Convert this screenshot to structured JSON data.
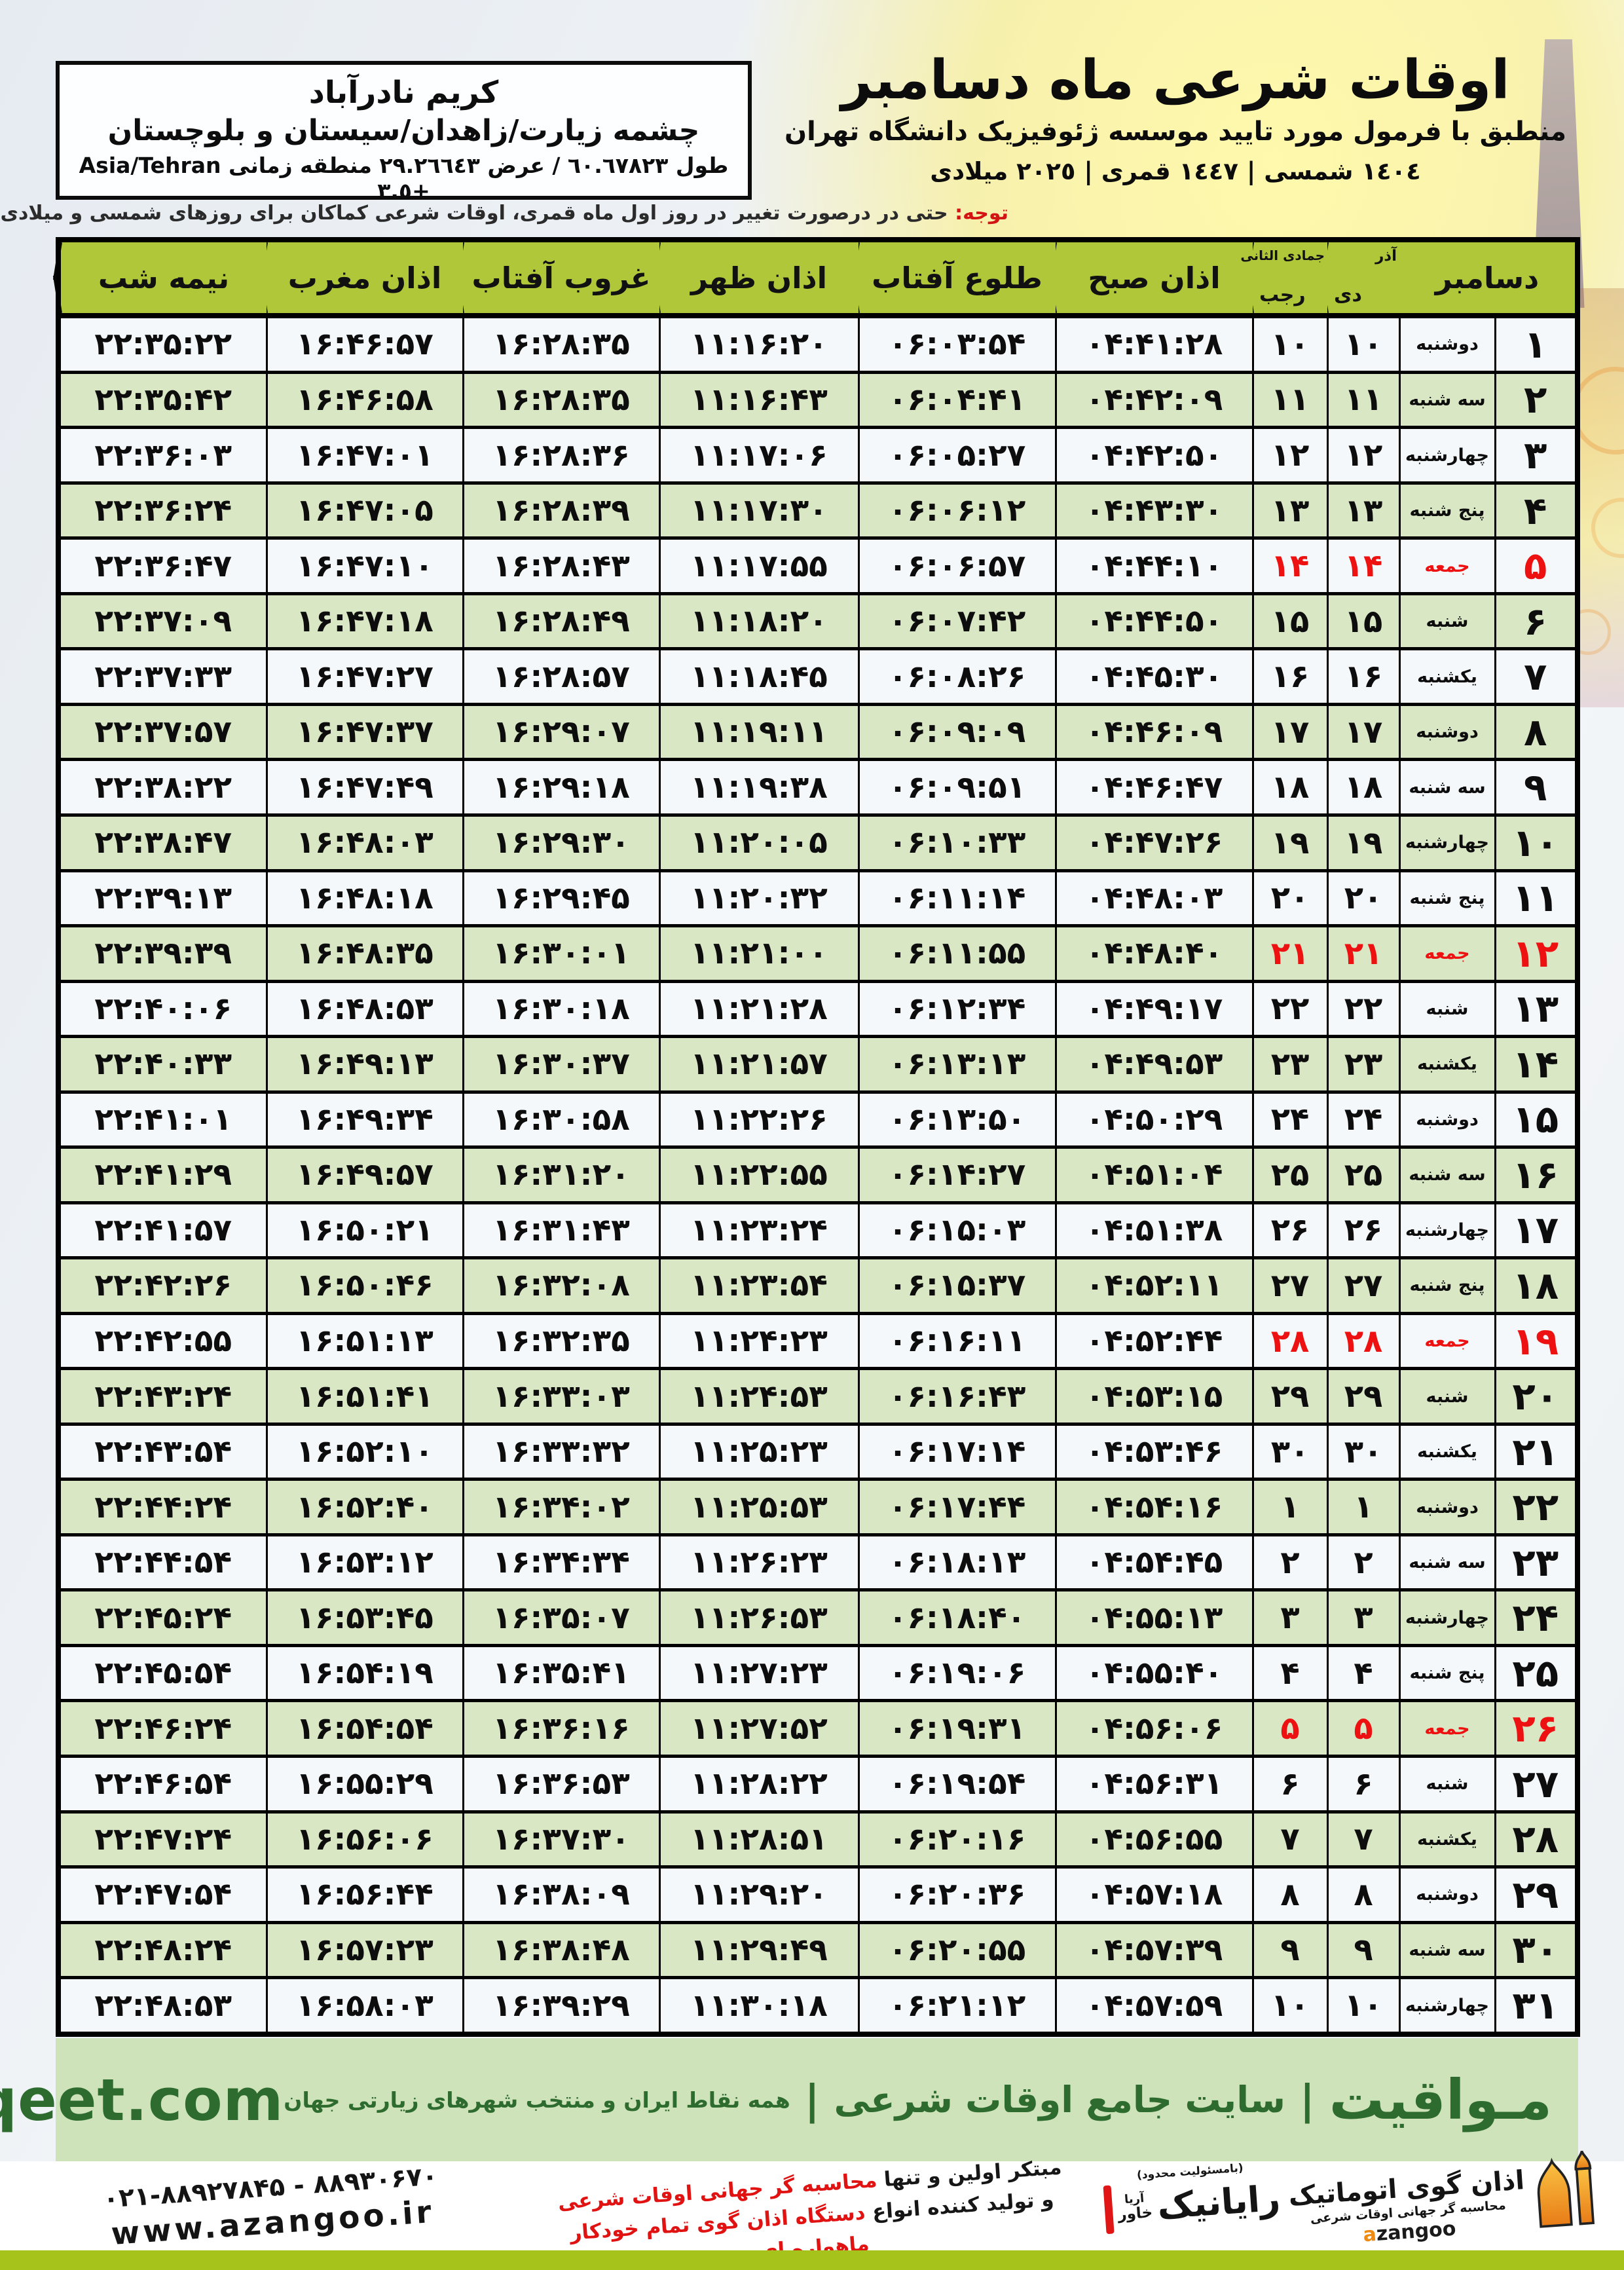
{
  "location_box": {
    "title": "کریم نادرآباد",
    "region": "چشمه زیارت/زاهدان/سیستان و بلوچستان",
    "coords": "طول ٦٠.٦٧٨٢٣ / عرض ٢٩.٢٦٦٤٣ منطقه زمانی Asia/Tehran +٣.٥"
  },
  "header": {
    "title": "اوقات شرعی ماه دسامبر",
    "subtitle": "منطبق با فرمول مورد تایید موسسه ژئوفیزیک دانشگاه تهران",
    "years": "١٤٠٤ شمسی | ١٤٤٧ قمری | ٢٠٢٥ میلادی"
  },
  "note": {
    "label": "توجه:",
    "text": " حتی در درصورت تغییر در روز اول ماه قمری، اوقات شرعی کماکان برای روزهای شمسی و میلادی معتبر است."
  },
  "table": {
    "columns": {
      "december": "دسامبر",
      "persian_month_top": "آذر",
      "persian_month_bottom": "دی",
      "islamic_month_top": "جمادی الثانی",
      "islamic_month_bottom": "رجب",
      "fajr": "اذان صبح",
      "sunrise": "طلوع آفتاب",
      "dhuhr": "اذان ظهر",
      "sunset": "غروب آفتاب",
      "maghrib": "اذان مغرب",
      "midnight": "نیمه شب"
    },
    "rows": [
      {
        "day": "۱",
        "weekday": "دوشنبه",
        "persian_day": "۱۰",
        "islamic_day": "۱۰",
        "fajr": "۰۴:۴۱:۲۸",
        "sunrise": "۰۶:۰۳:۵۴",
        "dhuhr": "۱۱:۱۶:۲۰",
        "sunset": "۱۶:۲۸:۳۵",
        "maghrib": "۱۶:۴۶:۵۷",
        "midnight": "۲۲:۳۵:۲۲",
        "friday": false
      },
      {
        "day": "۲",
        "weekday": "سه شنبه",
        "persian_day": "۱۱",
        "islamic_day": "۱۱",
        "fajr": "۰۴:۴۲:۰۹",
        "sunrise": "۰۶:۰۴:۴۱",
        "dhuhr": "۱۱:۱۶:۴۳",
        "sunset": "۱۶:۲۸:۳۵",
        "maghrib": "۱۶:۴۶:۵۸",
        "midnight": "۲۲:۳۵:۴۲",
        "friday": false
      },
      {
        "day": "۳",
        "weekday": "چهارشنبه",
        "persian_day": "۱۲",
        "islamic_day": "۱۲",
        "fajr": "۰۴:۴۲:۵۰",
        "sunrise": "۰۶:۰۵:۲۷",
        "dhuhr": "۱۱:۱۷:۰۶",
        "sunset": "۱۶:۲۸:۳۶",
        "maghrib": "۱۶:۴۷:۰۱",
        "midnight": "۲۲:۳۶:۰۳",
        "friday": false
      },
      {
        "day": "۴",
        "weekday": "پنج شنبه",
        "persian_day": "۱۳",
        "islamic_day": "۱۳",
        "fajr": "۰۴:۴۳:۳۰",
        "sunrise": "۰۶:۰۶:۱۲",
        "dhuhr": "۱۱:۱۷:۳۰",
        "sunset": "۱۶:۲۸:۳۹",
        "maghrib": "۱۶:۴۷:۰۵",
        "midnight": "۲۲:۳۶:۲۴",
        "friday": false
      },
      {
        "day": "۵",
        "weekday": "جمعه",
        "persian_day": "۱۴",
        "islamic_day": "۱۴",
        "fajr": "۰۴:۴۴:۱۰",
        "sunrise": "۰۶:۰۶:۵۷",
        "dhuhr": "۱۱:۱۷:۵۵",
        "sunset": "۱۶:۲۸:۴۳",
        "maghrib": "۱۶:۴۷:۱۰",
        "midnight": "۲۲:۳۶:۴۷",
        "friday": true
      },
      {
        "day": "۶",
        "weekday": "شنبه",
        "persian_day": "۱۵",
        "islamic_day": "۱۵",
        "fajr": "۰۴:۴۴:۵۰",
        "sunrise": "۰۶:۰۷:۴۲",
        "dhuhr": "۱۱:۱۸:۲۰",
        "sunset": "۱۶:۲۸:۴۹",
        "maghrib": "۱۶:۴۷:۱۸",
        "midnight": "۲۲:۳۷:۰۹",
        "friday": false
      },
      {
        "day": "۷",
        "weekday": "یکشنبه",
        "persian_day": "۱۶",
        "islamic_day": "۱۶",
        "fajr": "۰۴:۴۵:۳۰",
        "sunrise": "۰۶:۰۸:۲۶",
        "dhuhr": "۱۱:۱۸:۴۵",
        "sunset": "۱۶:۲۸:۵۷",
        "maghrib": "۱۶:۴۷:۲۷",
        "midnight": "۲۲:۳۷:۳۳",
        "friday": false
      },
      {
        "day": "۸",
        "weekday": "دوشنبه",
        "persian_day": "۱۷",
        "islamic_day": "۱۷",
        "fajr": "۰۴:۴۶:۰۹",
        "sunrise": "۰۶:۰۹:۰۹",
        "dhuhr": "۱۱:۱۹:۱۱",
        "sunset": "۱۶:۲۹:۰۷",
        "maghrib": "۱۶:۴۷:۳۷",
        "midnight": "۲۲:۳۷:۵۷",
        "friday": false
      },
      {
        "day": "۹",
        "weekday": "سه شنبه",
        "persian_day": "۱۸",
        "islamic_day": "۱۸",
        "fajr": "۰۴:۴۶:۴۷",
        "sunrise": "۰۶:۰۹:۵۱",
        "dhuhr": "۱۱:۱۹:۳۸",
        "sunset": "۱۶:۲۹:۱۸",
        "maghrib": "۱۶:۴۷:۴۹",
        "midnight": "۲۲:۳۸:۲۲",
        "friday": false
      },
      {
        "day": "۱۰",
        "weekday": "چهارشنبه",
        "persian_day": "۱۹",
        "islamic_day": "۱۹",
        "fajr": "۰۴:۴۷:۲۶",
        "sunrise": "۰۶:۱۰:۳۳",
        "dhuhr": "۱۱:۲۰:۰۵",
        "sunset": "۱۶:۲۹:۳۰",
        "maghrib": "۱۶:۴۸:۰۳",
        "midnight": "۲۲:۳۸:۴۷",
        "friday": false
      },
      {
        "day": "۱۱",
        "weekday": "پنج شنبه",
        "persian_day": "۲۰",
        "islamic_day": "۲۰",
        "fajr": "۰۴:۴۸:۰۳",
        "sunrise": "۰۶:۱۱:۱۴",
        "dhuhr": "۱۱:۲۰:۳۲",
        "sunset": "۱۶:۲۹:۴۵",
        "maghrib": "۱۶:۴۸:۱۸",
        "midnight": "۲۲:۳۹:۱۳",
        "friday": false
      },
      {
        "day": "۱۲",
        "weekday": "جمعه",
        "persian_day": "۲۱",
        "islamic_day": "۲۱",
        "fajr": "۰۴:۴۸:۴۰",
        "sunrise": "۰۶:۱۱:۵۵",
        "dhuhr": "۱۱:۲۱:۰۰",
        "sunset": "۱۶:۳۰:۰۱",
        "maghrib": "۱۶:۴۸:۳۵",
        "midnight": "۲۲:۳۹:۳۹",
        "friday": true
      },
      {
        "day": "۱۳",
        "weekday": "شنبه",
        "persian_day": "۲۲",
        "islamic_day": "۲۲",
        "fajr": "۰۴:۴۹:۱۷",
        "sunrise": "۰۶:۱۲:۳۴",
        "dhuhr": "۱۱:۲۱:۲۸",
        "sunset": "۱۶:۳۰:۱۸",
        "maghrib": "۱۶:۴۸:۵۳",
        "midnight": "۲۲:۴۰:۰۶",
        "friday": false
      },
      {
        "day": "۱۴",
        "weekday": "یکشنبه",
        "persian_day": "۲۳",
        "islamic_day": "۲۳",
        "fajr": "۰۴:۴۹:۵۳",
        "sunrise": "۰۶:۱۳:۱۳",
        "dhuhr": "۱۱:۲۱:۵۷",
        "sunset": "۱۶:۳۰:۳۷",
        "maghrib": "۱۶:۴۹:۱۳",
        "midnight": "۲۲:۴۰:۳۳",
        "friday": false
      },
      {
        "day": "۱۵",
        "weekday": "دوشنبه",
        "persian_day": "۲۴",
        "islamic_day": "۲۴",
        "fajr": "۰۴:۵۰:۲۹",
        "sunrise": "۰۶:۱۳:۵۰",
        "dhuhr": "۱۱:۲۲:۲۶",
        "sunset": "۱۶:۳۰:۵۸",
        "maghrib": "۱۶:۴۹:۳۴",
        "midnight": "۲۲:۴۱:۰۱",
        "friday": false
      },
      {
        "day": "۱۶",
        "weekday": "سه شنبه",
        "persian_day": "۲۵",
        "islamic_day": "۲۵",
        "fajr": "۰۴:۵۱:۰۴",
        "sunrise": "۰۶:۱۴:۲۷",
        "dhuhr": "۱۱:۲۲:۵۵",
        "sunset": "۱۶:۳۱:۲۰",
        "maghrib": "۱۶:۴۹:۵۷",
        "midnight": "۲۲:۴۱:۲۹",
        "friday": false
      },
      {
        "day": "۱۷",
        "weekday": "چهارشنبه",
        "persian_day": "۲۶",
        "islamic_day": "۲۶",
        "fajr": "۰۴:۵۱:۳۸",
        "sunrise": "۰۶:۱۵:۰۳",
        "dhuhr": "۱۱:۲۳:۲۴",
        "sunset": "۱۶:۳۱:۴۳",
        "maghrib": "۱۶:۵۰:۲۱",
        "midnight": "۲۲:۴۱:۵۷",
        "friday": false
      },
      {
        "day": "۱۸",
        "weekday": "پنج شنبه",
        "persian_day": "۲۷",
        "islamic_day": "۲۷",
        "fajr": "۰۴:۵۲:۱۱",
        "sunrise": "۰۶:۱۵:۳۷",
        "dhuhr": "۱۱:۲۳:۵۴",
        "sunset": "۱۶:۳۲:۰۸",
        "maghrib": "۱۶:۵۰:۴۶",
        "midnight": "۲۲:۴۲:۲۶",
        "friday": false
      },
      {
        "day": "۱۹",
        "weekday": "جمعه",
        "persian_day": "۲۸",
        "islamic_day": "۲۸",
        "fajr": "۰۴:۵۲:۴۴",
        "sunrise": "۰۶:۱۶:۱۱",
        "dhuhr": "۱۱:۲۴:۲۳",
        "sunset": "۱۶:۳۲:۳۵",
        "maghrib": "۱۶:۵۱:۱۳",
        "midnight": "۲۲:۴۲:۵۵",
        "friday": true
      },
      {
        "day": "۲۰",
        "weekday": "شنبه",
        "persian_day": "۲۹",
        "islamic_day": "۲۹",
        "fajr": "۰۴:۵۳:۱۵",
        "sunrise": "۰۶:۱۶:۴۳",
        "dhuhr": "۱۱:۲۴:۵۳",
        "sunset": "۱۶:۳۳:۰۳",
        "maghrib": "۱۶:۵۱:۴۱",
        "midnight": "۲۲:۴۳:۲۴",
        "friday": false
      },
      {
        "day": "۲۱",
        "weekday": "یکشنبه",
        "persian_day": "۳۰",
        "islamic_day": "۳۰",
        "fajr": "۰۴:۵۳:۴۶",
        "sunrise": "۰۶:۱۷:۱۴",
        "dhuhr": "۱۱:۲۵:۲۳",
        "sunset": "۱۶:۳۳:۳۲",
        "maghrib": "۱۶:۵۲:۱۰",
        "midnight": "۲۲:۴۳:۵۴",
        "friday": false
      },
      {
        "day": "۲۲",
        "weekday": "دوشنبه",
        "persian_day": "۱",
        "islamic_day": "۱",
        "fajr": "۰۴:۵۴:۱۶",
        "sunrise": "۰۶:۱۷:۴۴",
        "dhuhr": "۱۱:۲۵:۵۳",
        "sunset": "۱۶:۳۴:۰۲",
        "maghrib": "۱۶:۵۲:۴۰",
        "midnight": "۲۲:۴۴:۲۴",
        "friday": false
      },
      {
        "day": "۲۳",
        "weekday": "سه شنبه",
        "persian_day": "۲",
        "islamic_day": "۲",
        "fajr": "۰۴:۵۴:۴۵",
        "sunrise": "۰۶:۱۸:۱۳",
        "dhuhr": "۱۱:۲۶:۲۳",
        "sunset": "۱۶:۳۴:۳۴",
        "maghrib": "۱۶:۵۳:۱۲",
        "midnight": "۲۲:۴۴:۵۴",
        "friday": false
      },
      {
        "day": "۲۴",
        "weekday": "چهارشنبه",
        "persian_day": "۳",
        "islamic_day": "۳",
        "fajr": "۰۴:۵۵:۱۳",
        "sunrise": "۰۶:۱۸:۴۰",
        "dhuhr": "۱۱:۲۶:۵۳",
        "sunset": "۱۶:۳۵:۰۷",
        "maghrib": "۱۶:۵۳:۴۵",
        "midnight": "۲۲:۴۵:۲۴",
        "friday": false
      },
      {
        "day": "۲۵",
        "weekday": "پنج شنبه",
        "persian_day": "۴",
        "islamic_day": "۴",
        "fajr": "۰۴:۵۵:۴۰",
        "sunrise": "۰۶:۱۹:۰۶",
        "dhuhr": "۱۱:۲۷:۲۳",
        "sunset": "۱۶:۳۵:۴۱",
        "maghrib": "۱۶:۵۴:۱۹",
        "midnight": "۲۲:۴۵:۵۴",
        "friday": false
      },
      {
        "day": "۲۶",
        "weekday": "جمعه",
        "persian_day": "۵",
        "islamic_day": "۵",
        "fajr": "۰۴:۵۶:۰۶",
        "sunrise": "۰۶:۱۹:۳۱",
        "dhuhr": "۱۱:۲۷:۵۲",
        "sunset": "۱۶:۳۶:۱۶",
        "maghrib": "۱۶:۵۴:۵۴",
        "midnight": "۲۲:۴۶:۲۴",
        "friday": true
      },
      {
        "day": "۲۷",
        "weekday": "شنبه",
        "persian_day": "۶",
        "islamic_day": "۶",
        "fajr": "۰۴:۵۶:۳۱",
        "sunrise": "۰۶:۱۹:۵۴",
        "dhuhr": "۱۱:۲۸:۲۲",
        "sunset": "۱۶:۳۶:۵۳",
        "maghrib": "۱۶:۵۵:۲۹",
        "midnight": "۲۲:۴۶:۵۴",
        "friday": false
      },
      {
        "day": "۲۸",
        "weekday": "یکشنبه",
        "persian_day": "۷",
        "islamic_day": "۷",
        "fajr": "۰۴:۵۶:۵۵",
        "sunrise": "۰۶:۲۰:۱۶",
        "dhuhr": "۱۱:۲۸:۵۱",
        "sunset": "۱۶:۳۷:۳۰",
        "maghrib": "۱۶:۵۶:۰۶",
        "midnight": "۲۲:۴۷:۲۴",
        "friday": false
      },
      {
        "day": "۲۹",
        "weekday": "دوشنبه",
        "persian_day": "۸",
        "islamic_day": "۸",
        "fajr": "۰۴:۵۷:۱۸",
        "sunrise": "۰۶:۲۰:۳۶",
        "dhuhr": "۱۱:۲۹:۲۰",
        "sunset": "۱۶:۳۸:۰۹",
        "maghrib": "۱۶:۵۶:۴۴",
        "midnight": "۲۲:۴۷:۵۴",
        "friday": false
      },
      {
        "day": "۳۰",
        "weekday": "سه شنبه",
        "persian_day": "۹",
        "islamic_day": "۹",
        "fajr": "۰۴:۵۷:۳۹",
        "sunrise": "۰۶:۲۰:۵۵",
        "dhuhr": "۱۱:۲۹:۴۹",
        "sunset": "۱۶:۳۸:۴۸",
        "maghrib": "۱۶:۵۷:۲۳",
        "midnight": "۲۲:۴۸:۲۴",
        "friday": false
      },
      {
        "day": "۳۱",
        "weekday": "چهارشنبه",
        "persian_day": "۱۰",
        "islamic_day": "۱۰",
        "fajr": "۰۴:۵۷:۵۹",
        "sunrise": "۰۶:۲۱:۱۲",
        "dhuhr": "۱۱:۳۰:۱۸",
        "sunset": "۱۶:۳۹:۲۹",
        "maghrib": "۱۶:۵۸:۰۳",
        "midnight": "۲۲:۴۸:۵۳",
        "friday": false
      }
    ]
  },
  "brand_bar": {
    "brand": "مـواقیت",
    "separator": "|",
    "site_label": "سایت جامع اوقات شرعی",
    "coverage": "همه نقاط ایران و منتخب شهرهای زیارتی جهان",
    "url": "mavaqeet.com"
  },
  "footer": {
    "phone": "۰۲۱-۸۸۹۲۷۸۴۵ - ۸۸۹۳۰۶۷۰",
    "website": "www.azangoo.ir",
    "line1_black": "مبتکر اولین و تنها ",
    "line1_red": "محاسبه گر جهانی اوقات شرعی",
    "line2_black": "و تولید کننده انواع ",
    "line2_red": "دستگاه اذان گوی تمام خودکار ماهواره ای",
    "rayanik": {
      "tagline": "(بامسئولیت محدود)",
      "name": "رایانیک",
      "sub_top": "آریا",
      "sub_bottom": "خاور"
    },
    "azangoo": {
      "name": "اذان گوی اتوماتیک",
      "tagline": "محاسبه گر جهانی اوقات شرعی",
      "latin_first": "a",
      "latin_rest": "zangoo"
    }
  },
  "colors": {
    "header_green": "#b0c73a",
    "row_green": "#d9e7c5",
    "row_white": "#f5f8fa",
    "brand_bar_bg": "#cfe3ba",
    "brand_green": "#2e6b2f",
    "strip_green": "#a5c31b",
    "friday_red": "#ee1111",
    "note_red": "#d31414"
  }
}
